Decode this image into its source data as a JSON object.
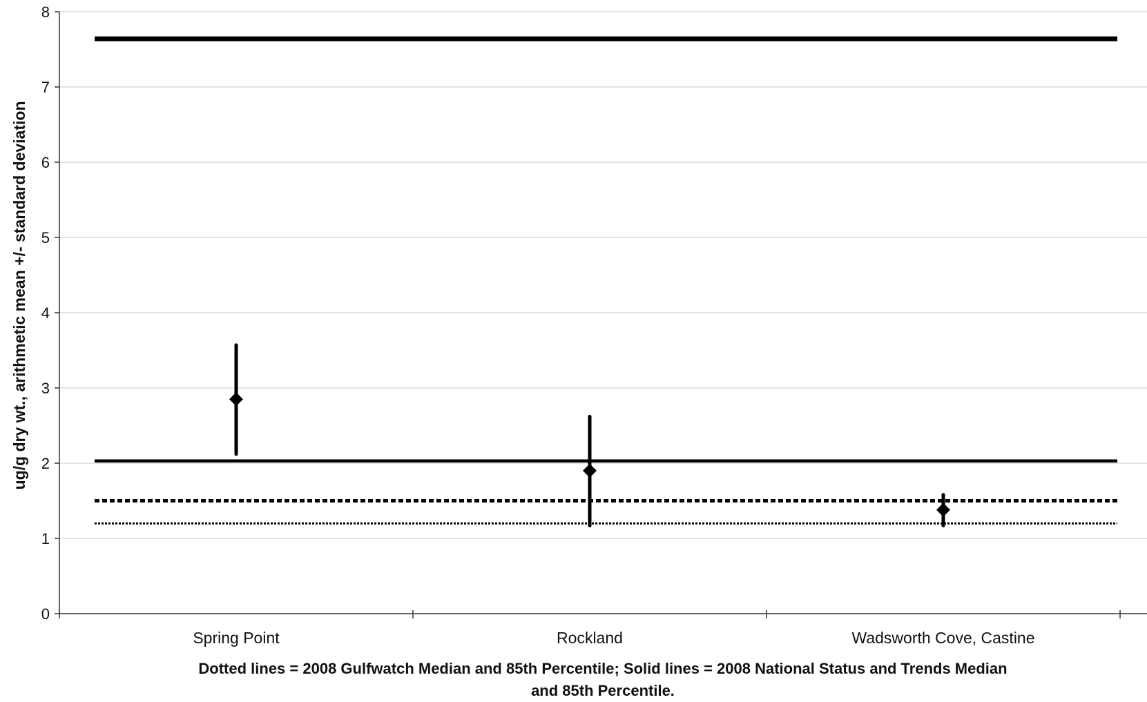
{
  "chart_data": {
    "type": "scatter",
    "ylabel": "ug/g dry wt., arithmetic mean +/- standard deviation",
    "xlabel": "",
    "title": "",
    "ylim": [
      0,
      8
    ],
    "yticks": [
      0,
      1,
      2,
      3,
      4,
      5,
      6,
      7,
      8
    ],
    "grid": true,
    "categories": [
      "Spring Point",
      "Rockland",
      "Wadsworth Cove, Castine"
    ],
    "points": [
      {
        "category": "Spring Point",
        "mean": 2.85,
        "low": 2.12,
        "high": 3.57
      },
      {
        "category": "Rockland",
        "mean": 1.9,
        "low": 1.17,
        "high": 2.62
      },
      {
        "category": "Wadsworth Cove, Castine",
        "mean": 1.38,
        "low": 1.17,
        "high": 1.58
      }
    ],
    "reference_lines": [
      {
        "value": 7.64,
        "style": "solid-thick"
      },
      {
        "value": 2.03,
        "style": "solid"
      },
      {
        "value": 1.5,
        "style": "dashed"
      },
      {
        "value": 1.2,
        "style": "dotted"
      }
    ],
    "caption_line1": "Dotted lines = 2008 Gulfwatch Median and 85th Percentile; Solid lines = 2008 National Status and Trends Median",
    "caption_line2": "and 85th Percentile."
  }
}
